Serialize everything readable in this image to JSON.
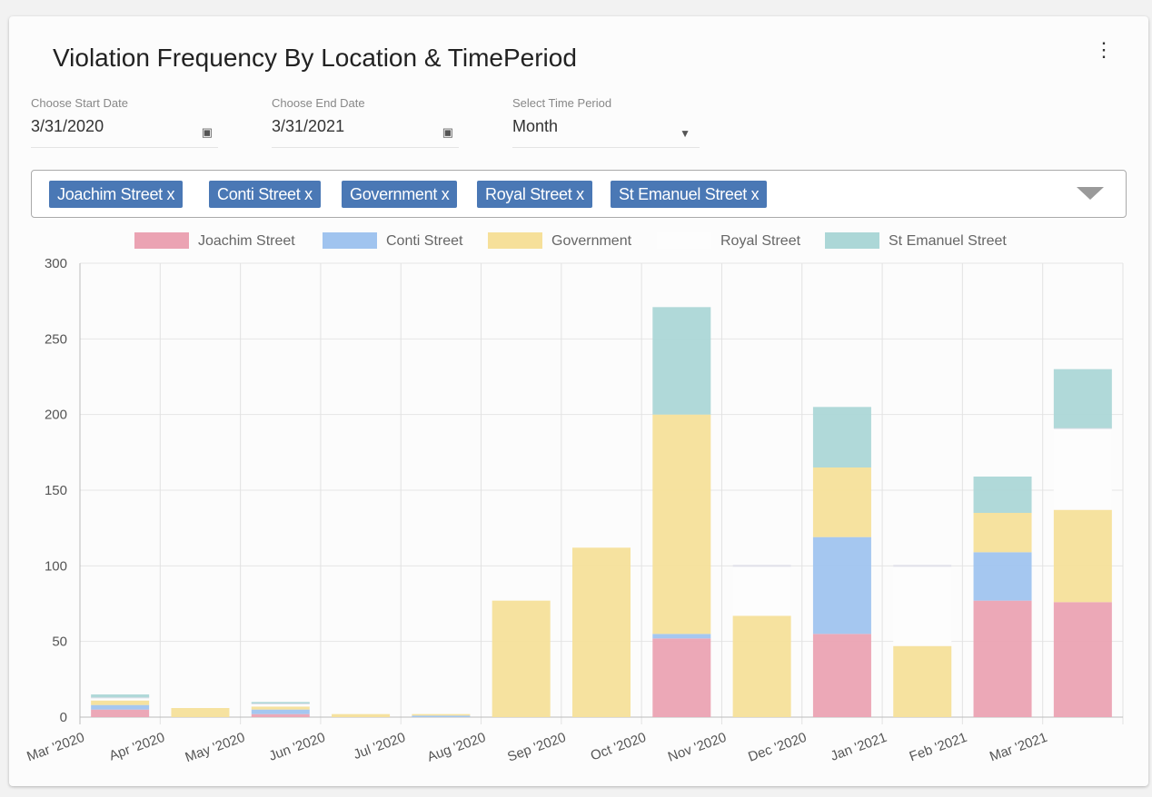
{
  "header": {
    "title": "Violation Frequency By Location & TimePeriod",
    "menu_icon": "more-vert-icon"
  },
  "filters": {
    "start": {
      "label": "Choose Start Date",
      "value": "3/31/2020",
      "icon": "calendar-icon"
    },
    "end": {
      "label": "Choose End Date",
      "value": "3/31/2021",
      "icon": "calendar-icon"
    },
    "period": {
      "label": "Select Time Period",
      "value": "Month",
      "icon": "dropdown-arrow-icon"
    }
  },
  "locations": {
    "chips": [
      "Joachim Street x",
      "Conti Street x",
      "Government x",
      "Royal Street x",
      "St Emanuel Street x"
    ],
    "chip_color": "#4a78b5"
  },
  "chart_data": {
    "type": "bar",
    "stacked": true,
    "categories": [
      "Mar '2020",
      "Apr '2020",
      "May '2020",
      "Jun '2020",
      "Jul '2020",
      "Aug '2020",
      "Sep '2020",
      "Oct '2020",
      "Nov '2020",
      "Dec '2020",
      "Jan '2021",
      "Feb '2021",
      "Mar '2021"
    ],
    "series": [
      {
        "name": "Joachim Street",
        "color": "#eba3b3",
        "values": [
          5,
          0,
          2,
          0,
          0,
          0,
          0,
          52,
          0,
          55,
          0,
          77,
          76
        ]
      },
      {
        "name": "Conti Street",
        "color": "#a0c4ef",
        "values": [
          3,
          0,
          3,
          0,
          1,
          0,
          0,
          3,
          0,
          64,
          0,
          32,
          0
        ]
      },
      {
        "name": "Government",
        "color": "#f6e09a",
        "values": [
          3,
          6,
          2,
          2,
          1,
          77,
          112,
          145,
          67,
          46,
          47,
          26,
          61
        ]
      },
      {
        "name": "Royal Street",
        "color": "#fdfdfd",
        "values": [
          2,
          0,
          2,
          0,
          0,
          0,
          0,
          0,
          33,
          0,
          53,
          0,
          54
        ]
      },
      {
        "name": "St Emanuel Street",
        "color": "#acd7d7",
        "values": [
          2,
          0,
          1,
          0,
          0,
          0,
          0,
          71,
          0,
          40,
          0,
          24,
          39
        ]
      }
    ],
    "ylim": [
      0,
      300
    ],
    "yticks": [
      "0",
      "50",
      "100",
      "150",
      "200",
      "250",
      "300"
    ],
    "grid": true,
    "legend": "top"
  }
}
